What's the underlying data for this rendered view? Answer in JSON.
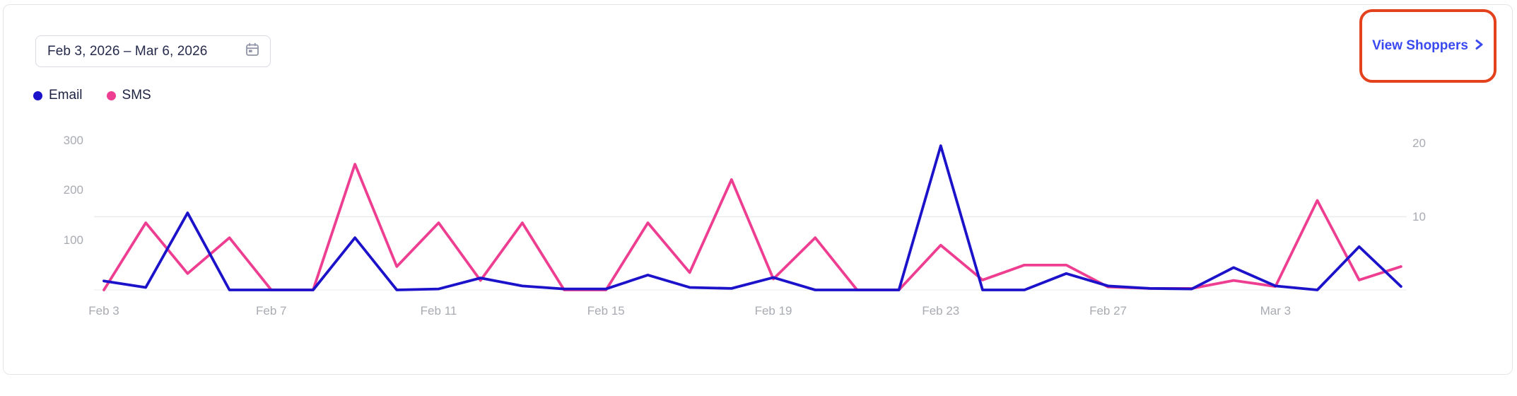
{
  "date_picker": {
    "value": "Feb 3, 2026 – Mar 6, 2026"
  },
  "view_shoppers": {
    "label": "View Shoppers",
    "color": "#3a49f0"
  },
  "annotation": {
    "color": "#e4411d"
  },
  "legend": [
    {
      "label": "Email",
      "color": "#1b12ca"
    },
    {
      "label": "SMS",
      "color": "#ee3e91"
    }
  ],
  "chart_data": {
    "type": "line",
    "x": [
      "Feb 3",
      "Feb 4",
      "Feb 5",
      "Feb 6",
      "Feb 7",
      "Feb 8",
      "Feb 9",
      "Feb 10",
      "Feb 11",
      "Feb 12",
      "Feb 13",
      "Feb 14",
      "Feb 15",
      "Feb 16",
      "Feb 17",
      "Feb 18",
      "Feb 19",
      "Feb 20",
      "Feb 21",
      "Feb 22",
      "Feb 23",
      "Feb 24",
      "Feb 25",
      "Feb 26",
      "Feb 27",
      "Feb 28",
      "Mar 1",
      "Mar 2",
      "Mar 3",
      "Mar 4",
      "Mar 5",
      "Mar 6"
    ],
    "x_tick_labels": [
      "Feb 3",
      "Feb 7",
      "Feb 11",
      "Feb 15",
      "Feb 19",
      "Feb 23",
      "Feb 27",
      "Mar 3"
    ],
    "x_tick_days": [
      0,
      4,
      8,
      12,
      16,
      20,
      24,
      28
    ],
    "series": [
      {
        "name": "Email",
        "color": "#1b12ca",
        "values": [
          18,
          5,
          155,
          0,
          0,
          0,
          105,
          0,
          2,
          24,
          8,
          2,
          2,
          30,
          5,
          3,
          25,
          0,
          0,
          0,
          290,
          0,
          0,
          33,
          8,
          3,
          2,
          45,
          8,
          0,
          87,
          7
        ]
      },
      {
        "name": "SMS",
        "color": "#ee3e91",
        "values": [
          0,
          135,
          33,
          105,
          0,
          0,
          253,
          47,
          135,
          19,
          135,
          0,
          0,
          135,
          35,
          222,
          22,
          105,
          0,
          0,
          90,
          20,
          50,
          50,
          6,
          3,
          3,
          19,
          7,
          180,
          20,
          47
        ]
      }
    ],
    "left_axis": {
      "ticks": [
        100,
        200,
        300
      ],
      "range": [
        0,
        300
      ]
    },
    "right_axis": {
      "ticks": [
        10,
        20
      ],
      "range": [
        0,
        20
      ],
      "gridline_values": [
        0,
        10
      ]
    },
    "grid": "horizontal-only",
    "legend_position": "top-left",
    "title": "",
    "xlabel": "",
    "ylabel": ""
  }
}
